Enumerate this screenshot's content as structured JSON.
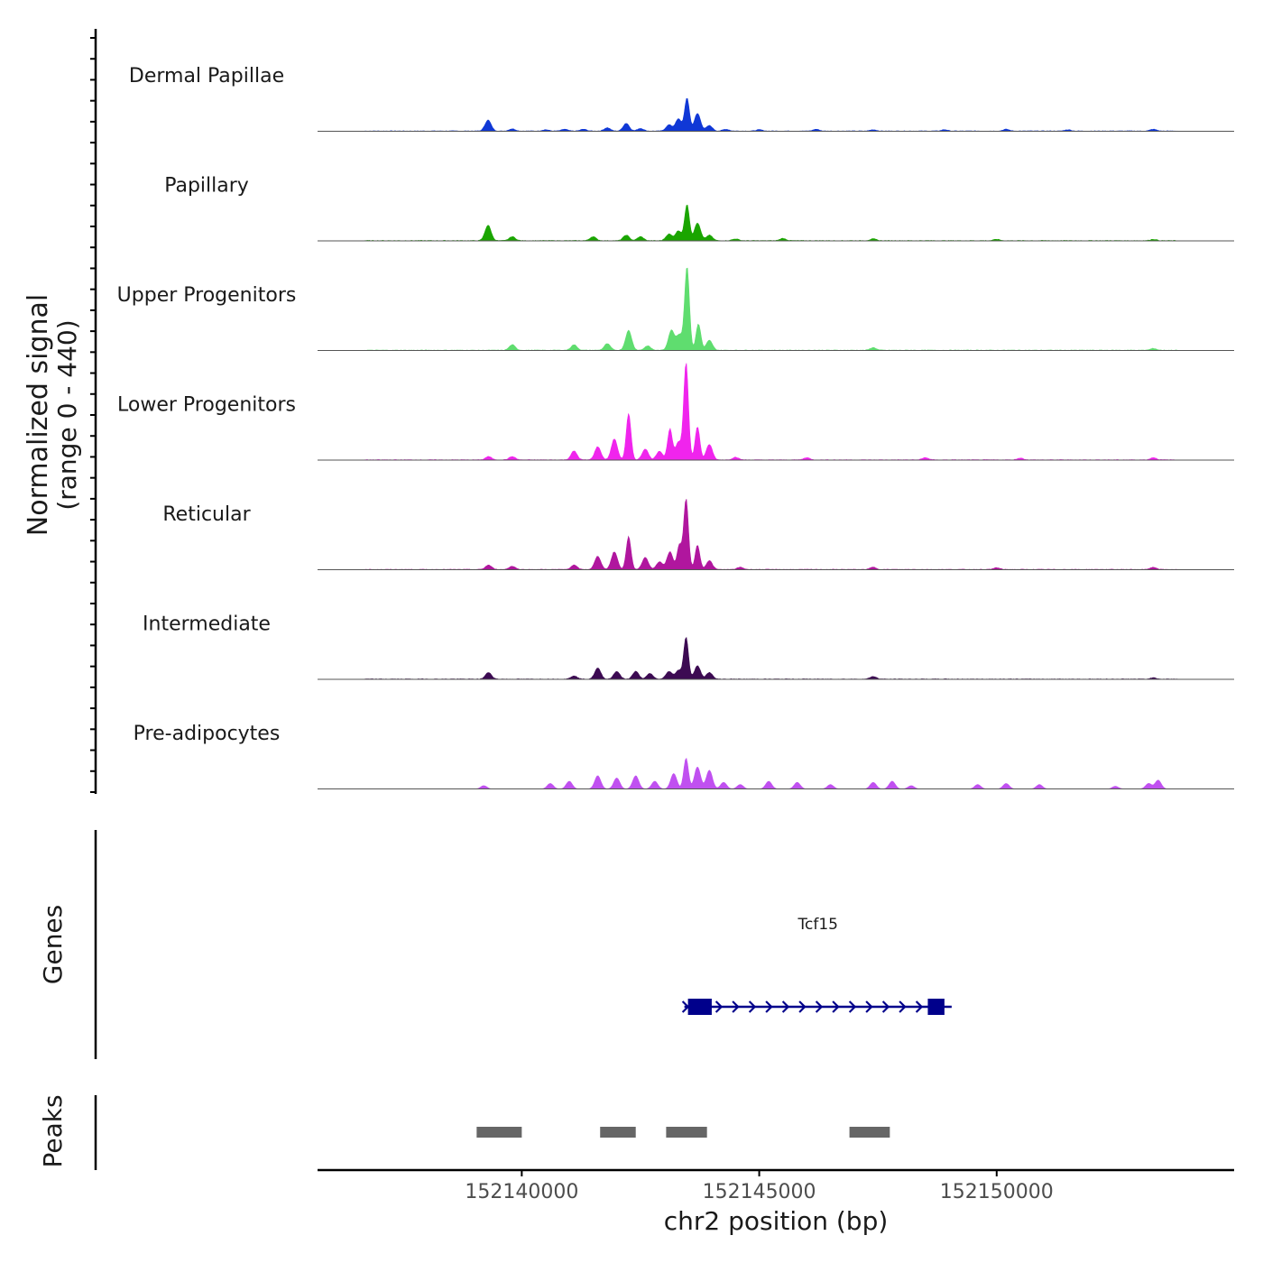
{
  "chart_data": {
    "type": "area",
    "title": "",
    "ylabel_line1": "Normalized signal",
    "ylabel_line2": "(range 0 - 440)",
    "y_range": [
      0,
      440
    ],
    "xlabel": "chr2 position (bp)",
    "x_range": [
      152135700,
      152155000
    ],
    "x_ticks": [
      {
        "value": 152140000,
        "label": "152140000"
      },
      {
        "value": 152145000,
        "label": "152145000"
      },
      {
        "value": 152150000,
        "label": "152150000"
      }
    ],
    "tracks": [
      {
        "name": "Dermal Papillae",
        "color": "#1038d6",
        "peaks": [
          [
            152139290,
            50
          ],
          [
            152139800,
            10
          ],
          [
            152140500,
            6
          ],
          [
            152140900,
            8
          ],
          [
            152141300,
            8
          ],
          [
            152141800,
            15
          ],
          [
            152142200,
            35
          ],
          [
            152142500,
            12
          ],
          [
            152143100,
            28
          ],
          [
            152143300,
            55
          ],
          [
            152143480,
            150
          ],
          [
            152143700,
            80
          ],
          [
            152143950,
            25
          ],
          [
            152144300,
            8
          ],
          [
            152145000,
            6
          ],
          [
            152146200,
            8
          ],
          [
            152147400,
            6
          ],
          [
            152148900,
            6
          ],
          [
            152150200,
            8
          ],
          [
            152151500,
            6
          ],
          [
            152153300,
            8
          ]
        ]
      },
      {
        "name": "Papillary",
        "color": "#1aa500",
        "peaks": [
          [
            152139290,
            70
          ],
          [
            152139800,
            18
          ],
          [
            152141500,
            18
          ],
          [
            152142200,
            25
          ],
          [
            152142500,
            18
          ],
          [
            152143100,
            30
          ],
          [
            152143300,
            45
          ],
          [
            152143480,
            165
          ],
          [
            152143700,
            80
          ],
          [
            152143950,
            25
          ],
          [
            152144500,
            8
          ],
          [
            152145500,
            10
          ],
          [
            152147400,
            8
          ],
          [
            152150000,
            6
          ],
          [
            152153300,
            6
          ]
        ]
      },
      {
        "name": "Upper Progenitors",
        "color": "#5fdd6f",
        "peaks": [
          [
            152139800,
            25
          ],
          [
            152141100,
            25
          ],
          [
            152141800,
            30
          ],
          [
            152142250,
            90
          ],
          [
            152142650,
            20
          ],
          [
            152143150,
            90
          ],
          [
            152143320,
            70
          ],
          [
            152143480,
            380
          ],
          [
            152143720,
            120
          ],
          [
            152143950,
            45
          ],
          [
            152147400,
            12
          ],
          [
            152153300,
            8
          ]
        ]
      },
      {
        "name": "Lower Progenitors",
        "color": "#f024ed",
        "peaks": [
          [
            152139300,
            15
          ],
          [
            152139800,
            15
          ],
          [
            152141100,
            40
          ],
          [
            152141600,
            60
          ],
          [
            152141950,
            95
          ],
          [
            152142250,
            210
          ],
          [
            152142600,
            50
          ],
          [
            152142900,
            40
          ],
          [
            152143120,
            140
          ],
          [
            152143300,
            80
          ],
          [
            152143460,
            440
          ],
          [
            152143700,
            150
          ],
          [
            152143950,
            70
          ],
          [
            152144500,
            12
          ],
          [
            152146000,
            10
          ],
          [
            152148500,
            10
          ],
          [
            152150500,
            8
          ],
          [
            152153300,
            10
          ]
        ]
      },
      {
        "name": "Reticular",
        "color": "#b0169e",
        "peaks": [
          [
            152139300,
            20
          ],
          [
            152139800,
            15
          ],
          [
            152141100,
            20
          ],
          [
            152141600,
            60
          ],
          [
            152141950,
            80
          ],
          [
            152142250,
            150
          ],
          [
            152142600,
            55
          ],
          [
            152142900,
            35
          ],
          [
            152143120,
            80
          ],
          [
            152143320,
            110
          ],
          [
            152143460,
            320
          ],
          [
            152143700,
            110
          ],
          [
            152143950,
            40
          ],
          [
            152144600,
            10
          ],
          [
            152147400,
            10
          ],
          [
            152150000,
            8
          ],
          [
            152153300,
            10
          ]
        ]
      },
      {
        "name": "Intermediate",
        "color": "#3c0a52",
        "peaks": [
          [
            152139300,
            30
          ],
          [
            152141100,
            15
          ],
          [
            152141600,
            50
          ],
          [
            152142000,
            35
          ],
          [
            152142400,
            35
          ],
          [
            152142700,
            25
          ],
          [
            152143100,
            35
          ],
          [
            152143300,
            40
          ],
          [
            152143460,
            190
          ],
          [
            152143700,
            60
          ],
          [
            152143950,
            30
          ],
          [
            152147400,
            12
          ],
          [
            152153300,
            6
          ]
        ]
      },
      {
        "name": "Pre-adipocytes",
        "color": "#c050f0",
        "peaks": [
          [
            152136400,
            12
          ],
          [
            152139200,
            15
          ],
          [
            152140600,
            25
          ],
          [
            152141000,
            35
          ],
          [
            152141600,
            60
          ],
          [
            152142000,
            50
          ],
          [
            152142400,
            60
          ],
          [
            152142800,
            35
          ],
          [
            152143200,
            70
          ],
          [
            152143460,
            140
          ],
          [
            152143700,
            100
          ],
          [
            152143950,
            85
          ],
          [
            152144250,
            30
          ],
          [
            152144600,
            20
          ],
          [
            152145200,
            35
          ],
          [
            152145800,
            30
          ],
          [
            152146500,
            20
          ],
          [
            152147400,
            30
          ],
          [
            152147800,
            35
          ],
          [
            152148200,
            15
          ],
          [
            152149600,
            20
          ],
          [
            152150200,
            25
          ],
          [
            152150900,
            20
          ],
          [
            152152500,
            12
          ],
          [
            152153200,
            25
          ],
          [
            152153400,
            40
          ]
        ]
      }
    ],
    "genes": [
      {
        "name": "Tcf15",
        "start": 152143500,
        "end": 152148900,
        "strand": "+",
        "exons": [
          [
            152143500,
            152144000
          ],
          [
            152148550,
            152148900
          ]
        ]
      }
    ],
    "peaks_track": [
      [
        152139050,
        152140000
      ],
      [
        152141650,
        152142400
      ],
      [
        152143040,
        152143900
      ],
      [
        152146900,
        152147750
      ]
    ],
    "panel_labels": {
      "genes": "Genes",
      "peaks": "Peaks"
    }
  }
}
